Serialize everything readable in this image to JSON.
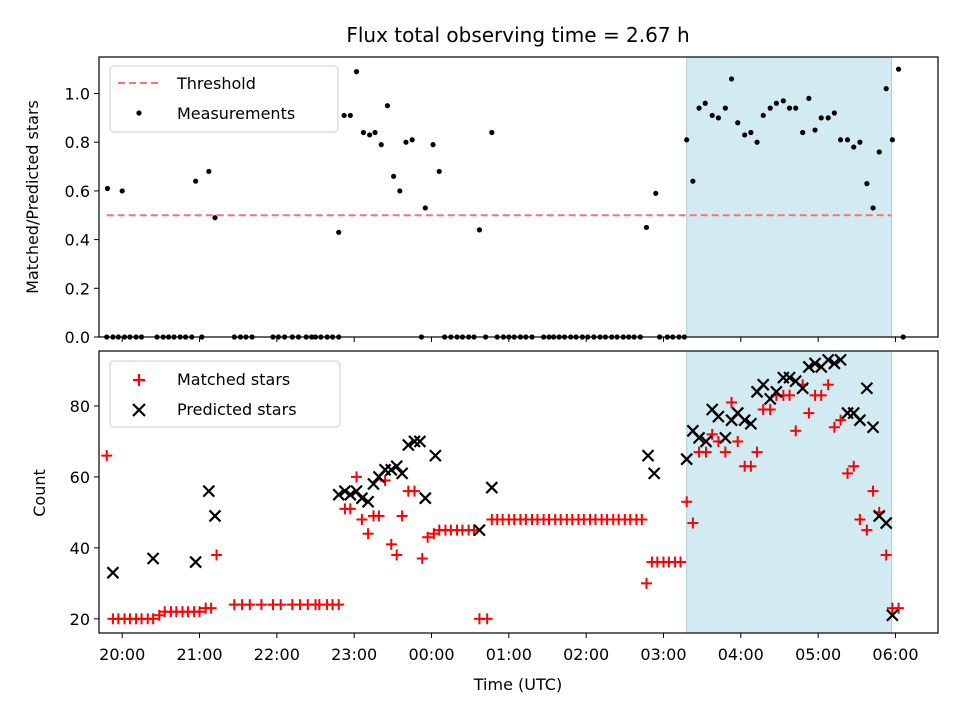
{
  "chart_data": {
    "type": "scatter",
    "title": "Flux total observing time = 2.67 h",
    "xlabel": "Time (UTC)",
    "x_unit": "hours since 00:00 UTC (negative = previous day)",
    "xlim": [
      -4.3,
      6.55
    ],
    "x_ticks": [
      {
        "value": -4,
        "label": "20:00"
      },
      {
        "value": -3,
        "label": "21:00"
      },
      {
        "value": -2,
        "label": "22:00"
      },
      {
        "value": -1,
        "label": "23:00"
      },
      {
        "value": 0,
        "label": "00:00"
      },
      {
        "value": 1,
        "label": "01:00"
      },
      {
        "value": 2,
        "label": "02:00"
      },
      {
        "value": 3,
        "label": "03:00"
      },
      {
        "value": 4,
        "label": "04:00"
      },
      {
        "value": 5,
        "label": "05:00"
      },
      {
        "value": 6,
        "label": "06:00"
      }
    ],
    "highlight_span": {
      "start": 3.3,
      "end": 5.95,
      "color": "#add8e6"
    },
    "top_panel": {
      "ylabel": "Matched/Predicted stars",
      "ylim": [
        0,
        1.15
      ],
      "y_ticks": [
        {
          "value": 0.0,
          "label": "0.0"
        },
        {
          "value": 0.2,
          "label": "0.2"
        },
        {
          "value": 0.4,
          "label": "0.4"
        },
        {
          "value": 0.6,
          "label": "0.6"
        },
        {
          "value": 0.8,
          "label": "0.8"
        },
        {
          "value": 1.0,
          "label": "1.0"
        }
      ],
      "legend_position": "upper-left",
      "threshold": {
        "name": "Threshold",
        "value": 0.5,
        "x_start": -4.2,
        "x_end": 5.95,
        "color": "#ff7070"
      },
      "measurements": {
        "name": "Measurements",
        "color": "#000000",
        "points": [
          [
            -4.19,
            0.61
          ],
          [
            -4.0,
            0.6
          ],
          [
            -3.05,
            0.64
          ],
          [
            -2.88,
            0.68
          ],
          [
            -2.8,
            0.49
          ],
          [
            -1.2,
            0.43
          ],
          [
            -1.13,
            0.91
          ],
          [
            -1.05,
            0.91
          ],
          [
            -0.97,
            1.09
          ],
          [
            -0.88,
            0.84
          ],
          [
            -0.8,
            0.83
          ],
          [
            -0.73,
            0.84
          ],
          [
            -0.65,
            0.79
          ],
          [
            -0.57,
            0.95
          ],
          [
            -0.49,
            0.66
          ],
          [
            -0.41,
            0.6
          ],
          [
            -0.33,
            0.8
          ],
          [
            -0.25,
            0.81
          ],
          [
            -0.08,
            0.53
          ],
          [
            0.02,
            0.79
          ],
          [
            0.1,
            0.68
          ],
          [
            0.62,
            0.44
          ],
          [
            0.78,
            0.84
          ],
          [
            2.78,
            0.45
          ],
          [
            2.9,
            0.59
          ],
          [
            3.3,
            0.81
          ],
          [
            3.38,
            0.64
          ],
          [
            3.46,
            0.94
          ],
          [
            3.54,
            0.96
          ],
          [
            3.63,
            0.91
          ],
          [
            3.71,
            0.9
          ],
          [
            3.8,
            0.94
          ],
          [
            3.88,
            1.06
          ],
          [
            3.96,
            0.88
          ],
          [
            4.05,
            0.83
          ],
          [
            4.13,
            0.84
          ],
          [
            4.21,
            0.8
          ],
          [
            4.29,
            0.91
          ],
          [
            4.38,
            0.94
          ],
          [
            4.46,
            0.96
          ],
          [
            4.55,
            0.97
          ],
          [
            4.63,
            0.94
          ],
          [
            4.71,
            0.94
          ],
          [
            4.8,
            0.84
          ],
          [
            4.88,
            0.98
          ],
          [
            4.96,
            0.85
          ],
          [
            5.04,
            0.9
          ],
          [
            5.13,
            0.9
          ],
          [
            5.21,
            0.92
          ],
          [
            5.29,
            0.81
          ],
          [
            5.38,
            0.81
          ],
          [
            5.46,
            0.78
          ],
          [
            5.54,
            0.8
          ],
          [
            5.63,
            0.63
          ],
          [
            5.71,
            0.53
          ],
          [
            5.79,
            0.76
          ],
          [
            5.88,
            1.02
          ],
          [
            5.96,
            0.81
          ],
          [
            6.04,
            1.1
          ]
        ],
        "zero_points_x": [
          -4.2,
          -4.12,
          -4.05,
          -3.97,
          -3.9,
          -3.82,
          -3.75,
          -3.55,
          -3.47,
          -3.4,
          -3.33,
          -3.25,
          -3.18,
          -3.1,
          -2.97,
          -2.55,
          -2.47,
          -2.4,
          -2.32,
          -2.05,
          -1.98,
          -1.9,
          -1.8,
          -1.72,
          -1.62,
          -1.55,
          -1.5,
          -1.43,
          -1.35,
          -1.28,
          -1.2,
          -0.13,
          0.17,
          0.25,
          0.33,
          0.4,
          0.48,
          0.55,
          0.7,
          0.85,
          0.93,
          1.0,
          1.07,
          1.15,
          1.22,
          1.3,
          1.45,
          1.52,
          1.58,
          1.65,
          1.72,
          1.8,
          1.87,
          1.95,
          2.02,
          2.1,
          2.18,
          2.25,
          2.33,
          2.4,
          2.48,
          2.55,
          2.62,
          2.7,
          2.95,
          3.05,
          3.12,
          3.2,
          3.27,
          6.1
        ]
      }
    },
    "bottom_panel": {
      "ylabel": "Count",
      "ylim": [
        16,
        95.5
      ],
      "y_ticks": [
        {
          "value": 20,
          "label": "20"
        },
        {
          "value": 40,
          "label": "40"
        },
        {
          "value": 60,
          "label": "60"
        },
        {
          "value": 80,
          "label": "80"
        }
      ],
      "legend_position": "upper-left",
      "series": [
        {
          "name": "Matched stars",
          "marker": "plus",
          "color": "#ff0000",
          "points": [
            [
              -4.2,
              66
            ],
            [
              -4.12,
              20
            ],
            [
              -4.05,
              20
            ],
            [
              -3.97,
              20
            ],
            [
              -3.9,
              20
            ],
            [
              -3.82,
              20
            ],
            [
              -3.75,
              20
            ],
            [
              -3.67,
              20
            ],
            [
              -3.6,
              20
            ],
            [
              -3.52,
              21
            ],
            [
              -3.45,
              22
            ],
            [
              -3.37,
              22
            ],
            [
              -3.3,
              22
            ],
            [
              -3.22,
              22
            ],
            [
              -3.15,
              22
            ],
            [
              -3.07,
              22
            ],
            [
              -3.0,
              22
            ],
            [
              -2.92,
              23
            ],
            [
              -2.85,
              23
            ],
            [
              -2.78,
              38
            ],
            [
              -2.55,
              24
            ],
            [
              -2.45,
              24
            ],
            [
              -2.35,
              24
            ],
            [
              -2.2,
              24
            ],
            [
              -2.05,
              24
            ],
            [
              -1.95,
              24
            ],
            [
              -1.8,
              24
            ],
            [
              -1.7,
              24
            ],
            [
              -1.6,
              24
            ],
            [
              -1.5,
              24
            ],
            [
              -1.45,
              24
            ],
            [
              -1.35,
              24
            ],
            [
              -1.28,
              24
            ],
            [
              -1.2,
              24
            ],
            [
              -1.12,
              51
            ],
            [
              -1.05,
              51
            ],
            [
              -0.97,
              60
            ],
            [
              -0.9,
              48
            ],
            [
              -0.82,
              44
            ],
            [
              -0.75,
              49
            ],
            [
              -0.68,
              49
            ],
            [
              -0.6,
              59
            ],
            [
              -0.52,
              41
            ],
            [
              -0.45,
              38
            ],
            [
              -0.38,
              49
            ],
            [
              -0.3,
              56
            ],
            [
              -0.22,
              56
            ],
            [
              -0.12,
              37
            ],
            [
              -0.05,
              43
            ],
            [
              0.03,
              44
            ],
            [
              0.1,
              45
            ],
            [
              0.18,
              45
            ],
            [
              0.25,
              45
            ],
            [
              0.33,
              45
            ],
            [
              0.4,
              45
            ],
            [
              0.48,
              45
            ],
            [
              0.55,
              45
            ],
            [
              0.62,
              20
            ],
            [
              0.72,
              20
            ],
            [
              0.78,
              48
            ],
            [
              0.85,
              48
            ],
            [
              0.92,
              48
            ],
            [
              1.0,
              48
            ],
            [
              1.07,
              48
            ],
            [
              1.15,
              48
            ],
            [
              1.22,
              48
            ],
            [
              1.3,
              48
            ],
            [
              1.37,
              48
            ],
            [
              1.45,
              48
            ],
            [
              1.52,
              48
            ],
            [
              1.6,
              48
            ],
            [
              1.67,
              48
            ],
            [
              1.75,
              48
            ],
            [
              1.82,
              48
            ],
            [
              1.9,
              48
            ],
            [
              1.97,
              48
            ],
            [
              2.05,
              48
            ],
            [
              2.12,
              48
            ],
            [
              2.2,
              48
            ],
            [
              2.27,
              48
            ],
            [
              2.35,
              48
            ],
            [
              2.42,
              48
            ],
            [
              2.5,
              48
            ],
            [
              2.57,
              48
            ],
            [
              2.65,
              48
            ],
            [
              2.72,
              48
            ],
            [
              2.78,
              30
            ],
            [
              2.85,
              36
            ],
            [
              2.92,
              36
            ],
            [
              3.0,
              36
            ],
            [
              3.07,
              36
            ],
            [
              3.15,
              36
            ],
            [
              3.22,
              36
            ],
            [
              3.3,
              53
            ],
            [
              3.38,
              47
            ],
            [
              3.46,
              67
            ],
            [
              3.55,
              67
            ],
            [
              3.63,
              72
            ],
            [
              3.71,
              70
            ],
            [
              3.8,
              67
            ],
            [
              3.88,
              81
            ],
            [
              3.96,
              70
            ],
            [
              4.05,
              63
            ],
            [
              4.13,
              63
            ],
            [
              4.21,
              67
            ],
            [
              4.29,
              79
            ],
            [
              4.38,
              79
            ],
            [
              4.46,
              83
            ],
            [
              4.55,
              83
            ],
            [
              4.63,
              83
            ],
            [
              4.71,
              73
            ],
            [
              4.8,
              86
            ],
            [
              4.88,
              78
            ],
            [
              4.96,
              83
            ],
            [
              5.04,
              83
            ],
            [
              5.13,
              86
            ],
            [
              5.21,
              74
            ],
            [
              5.29,
              76
            ],
            [
              5.38,
              61
            ],
            [
              5.46,
              63
            ],
            [
              5.54,
              48
            ],
            [
              5.63,
              45
            ],
            [
              5.71,
              56
            ],
            [
              5.79,
              50
            ],
            [
              5.88,
              38
            ],
            [
              5.96,
              23
            ],
            [
              6.04,
              23
            ]
          ]
        },
        {
          "name": "Predicted stars",
          "marker": "x",
          "color": "#000000",
          "points": [
            [
              -4.12,
              33
            ],
            [
              -3.6,
              37
            ],
            [
              -3.05,
              36
            ],
            [
              -2.88,
              56
            ],
            [
              -2.8,
              49
            ],
            [
              -1.2,
              55
            ],
            [
              -1.12,
              56
            ],
            [
              -1.05,
              55
            ],
            [
              -0.97,
              56
            ],
            [
              -0.9,
              54
            ],
            [
              -0.82,
              53
            ],
            [
              -0.75,
              58
            ],
            [
              -0.68,
              60
            ],
            [
              -0.6,
              62
            ],
            [
              -0.52,
              62
            ],
            [
              -0.45,
              63
            ],
            [
              -0.38,
              61
            ],
            [
              -0.3,
              69
            ],
            [
              -0.22,
              70
            ],
            [
              -0.15,
              70
            ],
            [
              -0.08,
              54
            ],
            [
              0.05,
              66
            ],
            [
              0.62,
              45
            ],
            [
              0.78,
              57
            ],
            [
              2.8,
              66
            ],
            [
              2.88,
              61
            ],
            [
              3.3,
              65
            ],
            [
              3.38,
              73
            ],
            [
              3.46,
              71
            ],
            [
              3.55,
              70
            ],
            [
              3.63,
              79
            ],
            [
              3.71,
              77
            ],
            [
              3.8,
              71
            ],
            [
              3.88,
              76
            ],
            [
              3.96,
              78
            ],
            [
              4.05,
              76
            ],
            [
              4.13,
              75
            ],
            [
              4.21,
              84
            ],
            [
              4.29,
              86
            ],
            [
              4.38,
              82
            ],
            [
              4.46,
              84
            ],
            [
              4.55,
              88
            ],
            [
              4.63,
              88
            ],
            [
              4.71,
              87
            ],
            [
              4.8,
              85
            ],
            [
              4.88,
              91
            ],
            [
              4.96,
              92
            ],
            [
              5.04,
              91
            ],
            [
              5.13,
              93
            ],
            [
              5.21,
              92
            ],
            [
              5.29,
              93
            ],
            [
              5.38,
              78
            ],
            [
              5.46,
              78
            ],
            [
              5.54,
              76
            ],
            [
              5.63,
              85
            ],
            [
              5.71,
              74
            ],
            [
              5.79,
              49
            ],
            [
              5.88,
              47
            ],
            [
              5.96,
              21
            ]
          ]
        }
      ]
    }
  }
}
